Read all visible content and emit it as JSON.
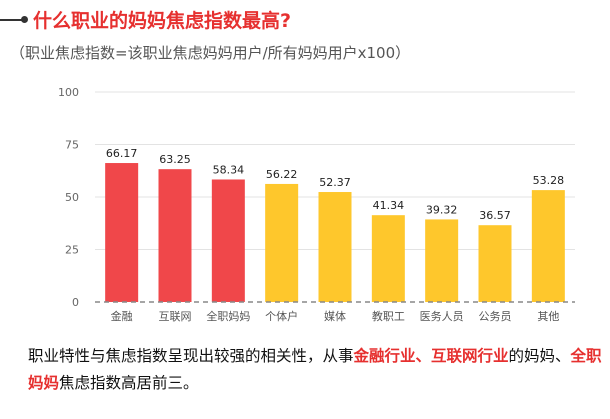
{
  "header": {
    "title": "什么职业的妈妈焦虑指数最高?",
    "subtitle": "（职业焦虑指数=该职业焦虑妈妈用户/所有妈妈用户x100）"
  },
  "caption": {
    "part1": "职业特性与焦虑指数呈现出较强的相关性，从事",
    "hl1": "金融行业、互联网行业",
    "part2": "的妈妈、",
    "hl2": "全职妈妈",
    "part3": "焦虑指数高居前三。"
  },
  "colors": {
    "top3": "#f0474a",
    "other": "#fec72c",
    "title": "#e6302f"
  },
  "chart_data": {
    "type": "bar",
    "categories": [
      "金融",
      "互联网",
      "全职妈妈",
      "个体户",
      "媒体",
      "教职工",
      "医务人员",
      "公务员",
      "其他"
    ],
    "values": [
      66.17,
      63.25,
      58.34,
      56.22,
      52.37,
      41.34,
      39.32,
      36.57,
      53.28
    ],
    "value_labels": [
      "66.17",
      "63.25",
      "58.34",
      "56.22",
      "52.37",
      "41.34",
      "39.32",
      "36.57",
      "53.28"
    ],
    "highlight": [
      true,
      true,
      true,
      false,
      false,
      false,
      false,
      false,
      false
    ],
    "ylim": [
      0,
      100
    ],
    "yticks": [
      0,
      25,
      50,
      75,
      100
    ],
    "ytick_labels": [
      "0",
      "25",
      "50",
      "75",
      "100"
    ],
    "grid": true
  }
}
